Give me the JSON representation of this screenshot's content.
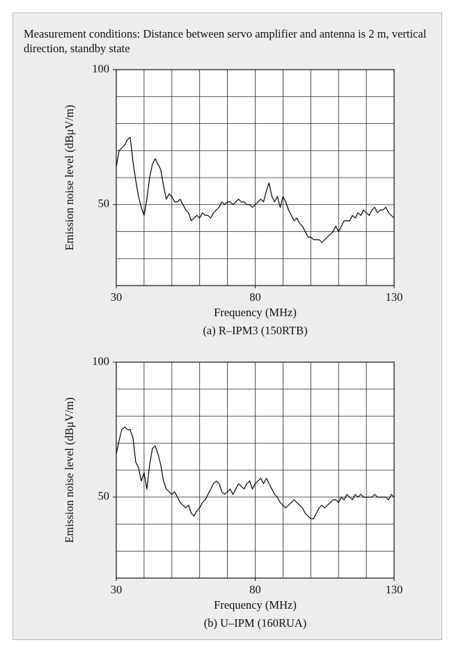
{
  "note": "Measurement conditions: Distance between servo amplifier and antenna is 2 m, vertical direction, standby state",
  "chart_data": [
    {
      "type": "line",
      "caption": "(a) R–IPM3 (150RTB)",
      "x_label": "Frequency (MHz)",
      "y_label": "Emission noise level (dBμV/m)",
      "x": [
        30,
        31,
        32,
        33,
        34,
        35,
        36,
        37,
        38,
        39,
        40,
        41,
        42,
        43,
        44,
        45,
        46,
        47,
        48,
        49,
        50,
        51,
        52,
        53,
        54,
        55,
        56,
        57,
        58,
        59,
        60,
        61,
        62,
        63,
        64,
        65,
        66,
        67,
        68,
        69,
        70,
        71,
        72,
        73,
        74,
        75,
        76,
        77,
        78,
        79,
        80,
        81,
        82,
        83,
        84,
        85,
        86,
        87,
        88,
        89,
        90,
        91,
        92,
        93,
        94,
        95,
        96,
        97,
        98,
        99,
        100,
        101,
        102,
        103,
        104,
        105,
        106,
        107,
        108,
        109,
        110,
        111,
        112,
        113,
        114,
        115,
        116,
        117,
        118,
        119,
        120,
        121,
        122,
        123,
        124,
        125,
        126,
        127,
        128,
        129,
        130
      ],
      "series": [
        {
          "color": "#000000",
          "values": [
            64,
            70,
            71,
            72,
            74,
            75,
            66,
            59,
            53,
            49,
            46,
            52,
            60,
            65,
            67,
            65,
            63,
            57,
            52,
            54,
            53,
            51,
            51,
            52,
            50,
            48,
            47,
            44,
            45,
            46,
            45,
            47,
            46,
            46,
            45,
            47,
            48,
            49,
            51,
            50,
            51,
            51,
            50,
            51,
            52,
            51,
            51,
            50,
            50,
            49,
            50,
            51,
            52,
            51,
            55,
            58,
            53,
            51,
            53,
            49,
            53,
            51,
            48,
            46,
            44,
            45,
            43,
            42,
            40,
            38,
            38,
            37,
            37,
            37,
            36,
            37,
            38,
            39,
            40,
            42,
            40,
            42,
            44,
            44,
            44,
            46,
            45,
            47,
            46,
            48,
            47,
            46,
            48,
            49,
            47,
            48,
            48,
            49,
            47,
            46,
            45
          ]
        }
      ],
      "xlim": [
        30,
        130
      ],
      "ylim": [
        20,
        100
      ],
      "xticks": [
        30,
        80,
        130
      ],
      "yticks": [
        50,
        100
      ],
      "xgrid": [
        30,
        40,
        50,
        60,
        70,
        80,
        90,
        100,
        110,
        120,
        130
      ],
      "ygrid": [
        20,
        30,
        40,
        50,
        60,
        70,
        80,
        90,
        100
      ]
    },
    {
      "type": "line",
      "caption": "(b) U–IPM (160RUA)",
      "x_label": "Frequency (MHz)",
      "y_label": "Emission noise level (dBμV/m)",
      "x": [
        30,
        31,
        32,
        33,
        34,
        35,
        36,
        37,
        38,
        39,
        40,
        41,
        42,
        43,
        44,
        45,
        46,
        47,
        48,
        49,
        50,
        51,
        52,
        53,
        54,
        55,
        56,
        57,
        58,
        59,
        60,
        61,
        62,
        63,
        64,
        65,
        66,
        67,
        68,
        69,
        70,
        71,
        72,
        73,
        74,
        75,
        76,
        77,
        78,
        79,
        80,
        81,
        82,
        83,
        84,
        85,
        86,
        87,
        88,
        89,
        90,
        91,
        92,
        93,
        94,
        95,
        96,
        97,
        98,
        99,
        100,
        101,
        102,
        103,
        104,
        105,
        106,
        107,
        108,
        109,
        110,
        111,
        112,
        113,
        114,
        115,
        116,
        117,
        118,
        119,
        120,
        121,
        122,
        123,
        124,
        125,
        126,
        127,
        128,
        129,
        130
      ],
      "series": [
        {
          "color": "#000000",
          "values": [
            66,
            71,
            75,
            76,
            75,
            75,
            72,
            63,
            61,
            56,
            59,
            53,
            62,
            68,
            69,
            66,
            62,
            56,
            53,
            52,
            51,
            52,
            50,
            48,
            47,
            46,
            47,
            44,
            43,
            45,
            46,
            48,
            49,
            51,
            53,
            55,
            56,
            55,
            52,
            51,
            52,
            53,
            51,
            53,
            55,
            54,
            53,
            55,
            56,
            53,
            55,
            56,
            57,
            55,
            57,
            55,
            53,
            51,
            50,
            48,
            47,
            46,
            47,
            48,
            49,
            48,
            47,
            46,
            44,
            43,
            42,
            42,
            44,
            46,
            47,
            46,
            47,
            48,
            49,
            49,
            48,
            50,
            49,
            51,
            50,
            49,
            51,
            50,
            51,
            50,
            50,
            50,
            50,
            51,
            50,
            50,
            50,
            50,
            49,
            51,
            50
          ]
        }
      ],
      "xlim": [
        30,
        130
      ],
      "ylim": [
        20,
        100
      ],
      "xticks": [
        30,
        80,
        130
      ],
      "yticks": [
        50,
        100
      ],
      "xgrid": [
        30,
        40,
        50,
        60,
        70,
        80,
        90,
        100,
        110,
        120,
        130
      ],
      "ygrid": [
        20,
        30,
        40,
        50,
        60,
        70,
        80,
        90,
        100
      ]
    }
  ]
}
